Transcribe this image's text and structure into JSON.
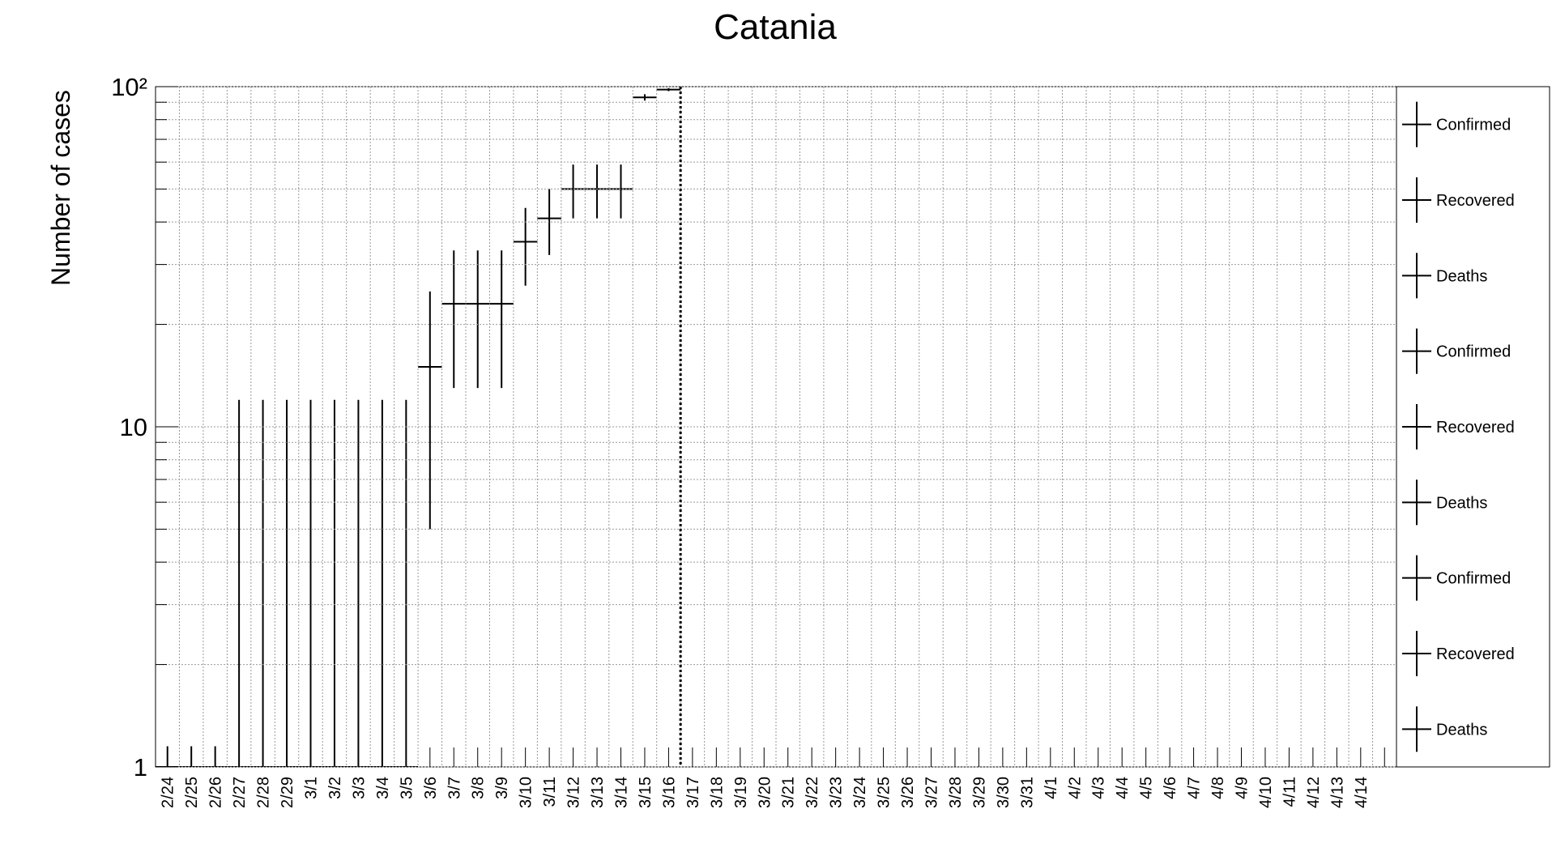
{
  "chart_data": {
    "type": "errorbar",
    "title": "Catania",
    "y_label": "Number of cases",
    "log_y": true,
    "grid": true,
    "color": "#000000",
    "categories": [
      "2/24",
      "2/25",
      "2/26",
      "2/27",
      "2/28",
      "2/29",
      "3/1",
      "3/2",
      "3/3",
      "3/4",
      "3/5",
      "3/6",
      "3/7",
      "3/8",
      "3/9",
      "3/10",
      "3/11",
      "3/12",
      "3/13",
      "3/14",
      "3/15",
      "3/16",
      "3/17",
      "3/18",
      "3/19",
      "3/20",
      "3/21",
      "3/22",
      "3/23",
      "3/24",
      "3/25",
      "3/26",
      "3/27",
      "3/28",
      "3/29",
      "3/30",
      "3/31",
      "4/1",
      "4/2",
      "4/3",
      "4/4",
      "4/5",
      "4/6",
      "4/7",
      "4/8",
      "4/9",
      "4/10",
      "4/11",
      "4/12",
      "4/13",
      "4/14",
      null
    ],
    "values": [
      1,
      1,
      1,
      1,
      1,
      1,
      1,
      1,
      1,
      1,
      1,
      15,
      23,
      23,
      23,
      35,
      41,
      50,
      50,
      50,
      93,
      98,
      null,
      null,
      null,
      null,
      null,
      null,
      null,
      null,
      null,
      null,
      null,
      null,
      null,
      null,
      null,
      null,
      null,
      null,
      null,
      null,
      null,
      null,
      null,
      null,
      null,
      null,
      null,
      null,
      null,
      null
    ],
    "errors": [
      0.15,
      0.15,
      0.15,
      11,
      11,
      11,
      11,
      11,
      11,
      11,
      11,
      10,
      10,
      10,
      10,
      9,
      9,
      9,
      9,
      9,
      2,
      1,
      null,
      null,
      null,
      null,
      null,
      null,
      null,
      null,
      null,
      null,
      null,
      null,
      null,
      null,
      null,
      null,
      null,
      null,
      null,
      null,
      null,
      null,
      null,
      null,
      null,
      null,
      null,
      null,
      null,
      null
    ],
    "ylim": [
      1,
      100
    ],
    "yticks": [
      1,
      10,
      {
        "value": 100,
        "label": "10²"
      }
    ],
    "yminorticks": [
      2,
      3,
      4,
      5,
      6,
      7,
      8,
      9,
      20,
      30,
      40,
      50,
      60,
      70,
      80,
      90
    ],
    "legend": [
      "Confirmed",
      "Recovered",
      "Deaths",
      "Confirmed",
      "Recovered",
      "Deaths",
      "Confirmed",
      "Recovered",
      "Deaths"
    ]
  }
}
